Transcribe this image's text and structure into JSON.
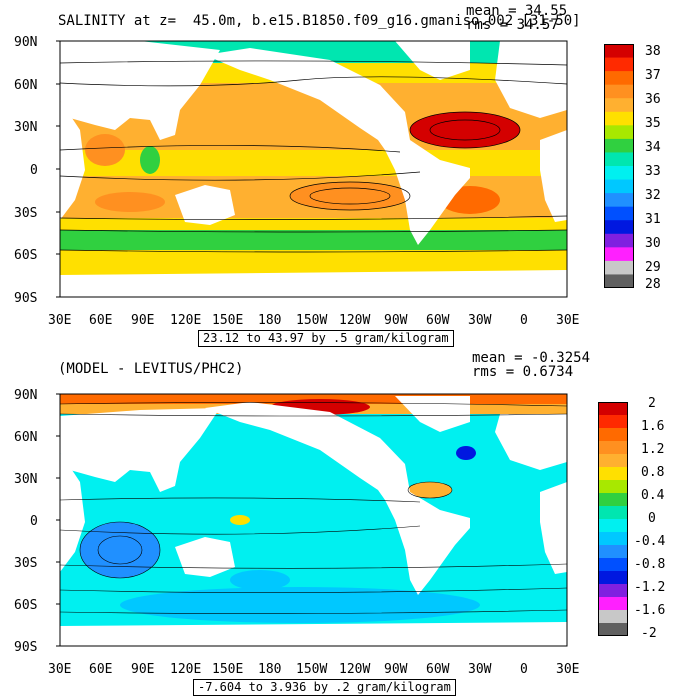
{
  "top": {
    "title": "SALINITY at z=  45.0m, b.e15.B1850.f09_g16.gmaniso.002 [31-50]",
    "mean": "mean = 34.55",
    "rms": "rms = 34.57",
    "range_note": "23.12 to 43.97 by .5 gram/kilogram",
    "lat_labels": [
      "90N",
      "60N",
      "30N",
      "0",
      "30S",
      "60S",
      "90S"
    ],
    "lon_labels": [
      "30E",
      "60E",
      "90E",
      "120E",
      "150E",
      "180",
      "150W",
      "120W",
      "90W",
      "60W",
      "30W",
      "0",
      "30E"
    ],
    "colorbar_labels": [
      "38",
      "37",
      "36",
      "35",
      "34",
      "33",
      "32",
      "31",
      "30",
      "29",
      "28"
    ],
    "colorbar_colors": [
      "#d40000",
      "#ff2a00",
      "#ff6a00",
      "#ff9020",
      "#ffb030",
      "#ffe000",
      "#a8e800",
      "#30d040",
      "#00e6b0",
      "#00f0f0",
      "#00c8ff",
      "#2090ff",
      "#0050ff",
      "#0018e0",
      "#8020e0",
      "#ff20ff",
      "#c8c8c8",
      "#606060"
    ]
  },
  "bottom": {
    "title": "(MODEL - LEVITUS/PHC2)",
    "mean": "mean = -0.3254",
    "rms": "rms = 0.6734",
    "range_note": "-7.604 to 3.936 by .2 gram/kilogram",
    "lat_labels": [
      "90N",
      "60N",
      "30N",
      "0",
      "30S",
      "60S",
      "90S"
    ],
    "lon_labels": [
      "30E",
      "60E",
      "90E",
      "120E",
      "150E",
      "180",
      "150W",
      "120W",
      "90W",
      "60W",
      "30W",
      "0",
      "30E"
    ],
    "colorbar_labels": [
      "2",
      "1.6",
      "1.2",
      "0.8",
      "0.4",
      "0",
      "-0.4",
      "-0.8",
      "-1.2",
      "-1.6",
      "-2"
    ],
    "colorbar_colors": [
      "#d40000",
      "#ff2a00",
      "#ff6a00",
      "#ff9020",
      "#ffb030",
      "#ffe000",
      "#a8e800",
      "#30d040",
      "#00e6b0",
      "#00f0f0",
      "#00c8ff",
      "#2090ff",
      "#0050ff",
      "#0018e0",
      "#8020e0",
      "#ff20ff",
      "#c8c8c8",
      "#606060"
    ]
  }
}
